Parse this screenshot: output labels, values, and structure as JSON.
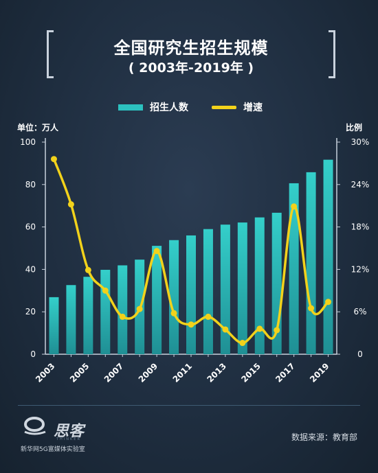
{
  "title": "全国研究生招生规模",
  "subtitle": "( 2003年-2019年 )",
  "legend": {
    "bar_label": "招生人数",
    "line_label": "增速"
  },
  "left_axis_title": "单位：万人",
  "right_axis_title": "比例",
  "footer": {
    "logo_text": "思客",
    "logo_sub": "THINKER",
    "org": "新华网5G富媒体实验室",
    "source": "数据来源：教育部"
  },
  "colors": {
    "bar": "#2cc1bf",
    "line": "#f2d21b",
    "background": "#1f2e40"
  },
  "chart_data": {
    "type": "bar",
    "title": "全国研究生招生规模",
    "subtitle": "( 2003年-2019年 )",
    "ylabel": "单位：万人",
    "y2label": "比例",
    "categories": [
      "2003",
      "2004",
      "2005",
      "2006",
      "2007",
      "2008",
      "2009",
      "2010",
      "2011",
      "2012",
      "2013",
      "2014",
      "2015",
      "2016",
      "2017",
      "2018",
      "2019"
    ],
    "x_tick_labels": [
      "2003",
      "2005",
      "2007",
      "2009",
      "2011",
      "2013",
      "2015",
      "2017",
      "2019"
    ],
    "ylim": [
      0,
      100
    ],
    "y_ticks": [
      "0",
      "20",
      "40",
      "60",
      "80",
      "100"
    ],
    "y2lim": [
      0,
      30
    ],
    "y2_ticks": [
      "0",
      "6%",
      "12%",
      "18%",
      "24%",
      "30%"
    ],
    "legend_position": "top-center",
    "grid": false,
    "series": [
      {
        "name": "招生人数",
        "type": "bar",
        "axis": "left",
        "values": [
          26.9,
          32.6,
          36.5,
          39.8,
          41.9,
          44.6,
          51.1,
          53.8,
          56.0,
          59.0,
          61.1,
          62.1,
          64.5,
          66.7,
          80.6,
          85.8,
          91.7
        ]
      },
      {
        "name": "增速",
        "type": "line",
        "axis": "right",
        "unit": "%",
        "values": [
          27.6,
          21.2,
          11.9,
          9.0,
          5.3,
          6.4,
          14.6,
          5.8,
          4.2,
          5.3,
          3.5,
          1.6,
          3.6,
          3.4,
          20.9,
          6.5,
          7.4
        ]
      }
    ]
  }
}
